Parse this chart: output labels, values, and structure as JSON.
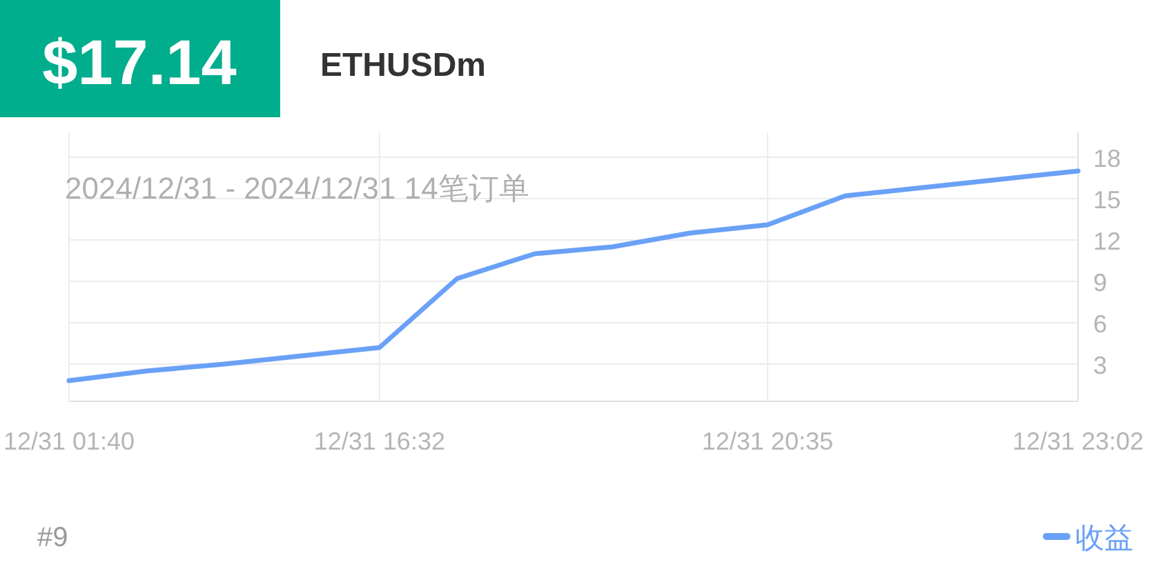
{
  "chart_data": {
    "type": "line",
    "title": "$17.14",
    "subtitle": "ETHUSDm",
    "categories": [
      "12/31 01:40",
      null,
      null,
      null,
      "12/31 16:32",
      null,
      null,
      null,
      null,
      "12/31 20:35",
      null,
      null,
      null,
      "12/31 23:02"
    ],
    "series": [
      {
        "name": "收益",
        "color": "#6aa1f7",
        "values": [
          1.8,
          2.5,
          3.0,
          3.6,
          4.2,
          9.2,
          11.0,
          11.5,
          12.5,
          13.1,
          15.2,
          15.8,
          16.4,
          17.0
        ]
      }
    ],
    "ylim": [
      0.3,
      18
    ],
    "yticks": [
      3,
      6,
      9,
      12,
      15,
      18
    ],
    "grid": true,
    "legend": "bottom right",
    "annotations": [
      "2024/12/31 - 2024/12/31  14笔订单",
      "#9"
    ]
  }
}
